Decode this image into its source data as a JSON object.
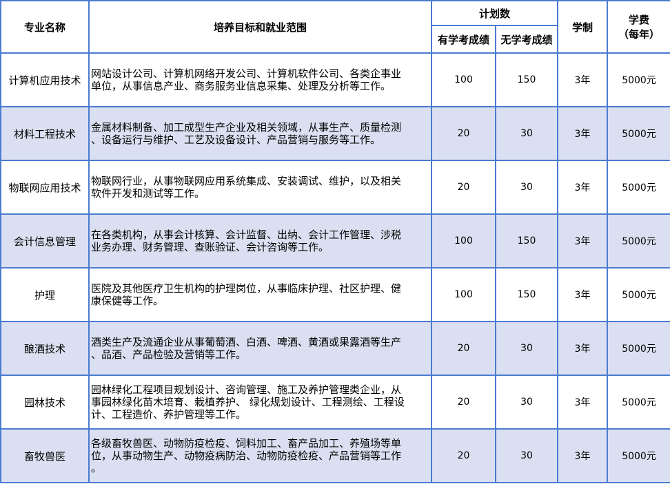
{
  "header": {
    "major": "专业名称",
    "goals": "培养目标和就业范围",
    "plan": "计划数",
    "with_score": "有学考成绩",
    "without_score": "无学考成绩",
    "duration": "学制",
    "fee_line1": "学费",
    "fee_line2": "（每年）"
  },
  "colors": {
    "border": "#4a7bd0",
    "alt_row": "#dae0f1"
  },
  "rows": [
    {
      "name": "计算机应用技术",
      "desc": [
        "网站设计公司、计算机网络开发公司、计算机软件公司、各类企事业",
        "单位，从事信息产业、商务服务业信息采集、处理及分析等工作。"
      ],
      "with_score": "100",
      "without_score": "150",
      "duration": "3年",
      "fee": "5000元"
    },
    {
      "name": "材料工程技术",
      "desc": [
        "金属材料制备、加工成型生产企业及相关领域，从事生产、质量检测",
        "、设备运行与维护、工艺及设备设计、产品营销与服务等工作。"
      ],
      "with_score": "20",
      "without_score": "30",
      "duration": "3年",
      "fee": "5000元"
    },
    {
      "name": "物联网应用技术",
      "desc": [
        "物联网行业，从事物联网应用系统集成、安装调试、维护，以及相关",
        "软件开发和测试等工作。"
      ],
      "with_score": "20",
      "without_score": "30",
      "duration": "3年",
      "fee": "5000元"
    },
    {
      "name": "会计信息管理",
      "desc": [
        "在各类机构，从事会计核算、会计监督、出纳、会计工作管理、涉税",
        "业务办理、财务管理、查账验证、会计咨询等工作。"
      ],
      "with_score": "100",
      "without_score": "150",
      "duration": "3年",
      "fee": "5000元"
    },
    {
      "name": "护理",
      "desc": [
        "医院及其他医疗卫生机构的护理岗位，从事临床护理、社区护理、健",
        "康保健等工作。"
      ],
      "with_score": "100",
      "without_score": "150",
      "duration": "3年",
      "fee": "5000元"
    },
    {
      "name": "酿酒技术",
      "desc": [
        "酒类生产及流通企业从事葡萄酒、白酒、啤酒、黄酒或果露酒等生产",
        "、品酒、产品检验及营销等工作。"
      ],
      "with_score": "20",
      "without_score": "30",
      "duration": "3年",
      "fee": "5000元"
    },
    {
      "name": "园林技术",
      "desc": [
        "园林绿化工程项目规划设计、咨询管理、施工及养护管理类企业，从",
        "事园林绿化苗木培育、栽植养护、 绿化规划设计、工程测绘、工程设",
        "计、工程造价、养护管理等工作。"
      ],
      "with_score": "20",
      "without_score": "30",
      "duration": "3年",
      "fee": "5000元"
    },
    {
      "name": "畜牧兽医",
      "desc": [
        "各级畜牧兽医、动物防疫检疫、饲料加工、畜产品加工、养殖场等单",
        "位，从事动物生产、动物疫病防治、动物防疫检疫、产品营销等工作",
        "。"
      ],
      "with_score": "20",
      "without_score": "30",
      "duration": "3年",
      "fee": "5000元"
    }
  ]
}
